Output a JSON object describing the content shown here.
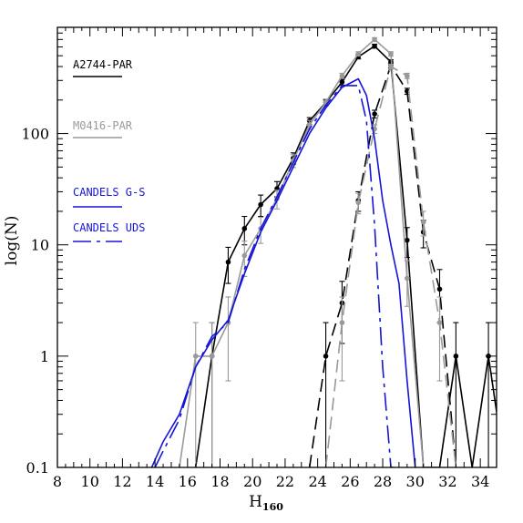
{
  "chart_data": {
    "type": "line",
    "xlabel": "H",
    "xlabel_sub": "160",
    "ylabel": "log(N)",
    "xlim": [
      8,
      35
    ],
    "ylim": [
      0.1,
      900
    ],
    "yscale": "log",
    "x_ticks": [
      8,
      10,
      12,
      14,
      16,
      18,
      20,
      22,
      24,
      26,
      28,
      30,
      32,
      34
    ],
    "y_ticks": [
      {
        "value": 0.1,
        "label": "0.1"
      },
      {
        "value": 1,
        "label": "1"
      },
      {
        "value": 10,
        "label": "10"
      },
      {
        "value": 100,
        "label": "100"
      }
    ],
    "legend_placement": "left",
    "series": [
      {
        "name": "A2744-PAR",
        "color": "#000000",
        "dash": "solid",
        "markers": true,
        "x": [
          16.5,
          17.5,
          18.5,
          19.5,
          20.5,
          21.5,
          22.5,
          23.5,
          24.5,
          25.5,
          26.5,
          27.5,
          28.5,
          29.5,
          30.5,
          31.5,
          32.5,
          33.5,
          34.5,
          35.5
        ],
        "y": [
          0.1,
          1,
          7,
          14,
          23,
          32,
          60,
          130,
          190,
          290,
          490,
          610,
          440,
          11,
          0.1,
          0.1,
          1,
          0.1,
          1,
          0.1
        ],
        "err_low": [
          null,
          1,
          2.5,
          4,
          5,
          5,
          7,
          9,
          10,
          17,
          22,
          25,
          20,
          3.3,
          null,
          null,
          1,
          null,
          1,
          null
        ],
        "err_high": [
          null,
          1,
          2.5,
          4,
          5,
          5,
          7,
          9,
          10,
          17,
          22,
          25,
          20,
          3.3,
          null,
          null,
          1,
          null,
          1,
          null
        ]
      },
      {
        "name": "",
        "color": "#000000",
        "dash": "long-dash",
        "markers": true,
        "x": [
          23.5,
          24.5,
          25.5,
          26.5,
          27.5,
          28.5,
          29.5,
          30.5,
          31.5,
          32.5
        ],
        "y": [
          0.1,
          1,
          3,
          25,
          150,
          410,
          240,
          13,
          4,
          0.1
        ],
        "err_low": [
          null,
          1,
          1.7,
          5,
          12,
          20,
          15,
          3.6,
          2,
          null
        ],
        "err_high": [
          null,
          1,
          1.7,
          5,
          12,
          20,
          15,
          3.6,
          2,
          null
        ]
      },
      {
        "name": "M0416-PAR",
        "color": "#999999",
        "dash": "solid",
        "markers": true,
        "x": [
          15.5,
          16.5,
          17.5,
          18.5,
          19.5,
          20.5,
          21.5,
          22.5,
          23.5,
          24.5,
          25.5,
          26.5,
          27.5,
          28.5,
          29.5,
          30.5
        ],
        "y": [
          0.1,
          1,
          1,
          2,
          8,
          14,
          26,
          57,
          120,
          190,
          330,
          520,
          700,
          520,
          5,
          0.1
        ],
        "err_low": [
          null,
          1,
          1,
          1.4,
          2.8,
          3.7,
          5,
          7.5,
          11,
          14,
          18,
          23,
          26,
          23,
          2.2,
          null
        ],
        "err_high": [
          null,
          1,
          1,
          1.4,
          2.8,
          3.7,
          5,
          7.5,
          11,
          14,
          18,
          23,
          26,
          23,
          2.2,
          null
        ]
      },
      {
        "name": "",
        "color": "#999999",
        "dash": "long-dash",
        "markers": true,
        "x": [
          24.5,
          25.5,
          26.5,
          27.5,
          28.5,
          29.5,
          30.5,
          31.5,
          32.5
        ],
        "y": [
          0.1,
          2,
          24,
          110,
          400,
          330,
          16,
          2,
          0.1
        ],
        "err_low": [
          null,
          1.4,
          5,
          10,
          20,
          18,
          4,
          1.4,
          null
        ],
        "err_high": [
          null,
          1.4,
          5,
          10,
          20,
          18,
          4,
          1.4,
          null
        ]
      },
      {
        "name": "CANDELS G-S",
        "color": "#1515d8",
        "dash": "solid",
        "markers": false,
        "x": [
          13.8,
          14.5,
          15.5,
          16.5,
          17.5,
          18.5,
          19.5,
          20.5,
          21.5,
          22.5,
          23.5,
          24.5,
          25.5,
          26.5,
          27.0,
          27.5,
          28.0,
          28.5,
          29.0,
          29.5,
          30.0
        ],
        "y": [
          0.1,
          0.17,
          0.3,
          0.8,
          1.4,
          2.1,
          5.5,
          13,
          25,
          50,
          100,
          170,
          260,
          310,
          220,
          90,
          25,
          10,
          4.5,
          0.6,
          0.1
        ]
      },
      {
        "name": "CANDELS UDS",
        "color": "#1515d8",
        "dash": "dash-dot",
        "markers": false,
        "x": [
          14.0,
          14.5,
          15.5,
          16.5,
          17.5,
          18.5,
          19.5,
          20.5,
          21.5,
          22.5,
          23.5,
          24.5,
          25.5,
          26.5,
          27.0,
          27.5,
          28.0,
          28.5,
          28.7
        ],
        "y": [
          0.1,
          0.14,
          0.27,
          0.8,
          1.5,
          2.0,
          6,
          14,
          27,
          55,
          110,
          180,
          270,
          270,
          130,
          15,
          0.8,
          0.1,
          0.1
        ]
      }
    ]
  }
}
